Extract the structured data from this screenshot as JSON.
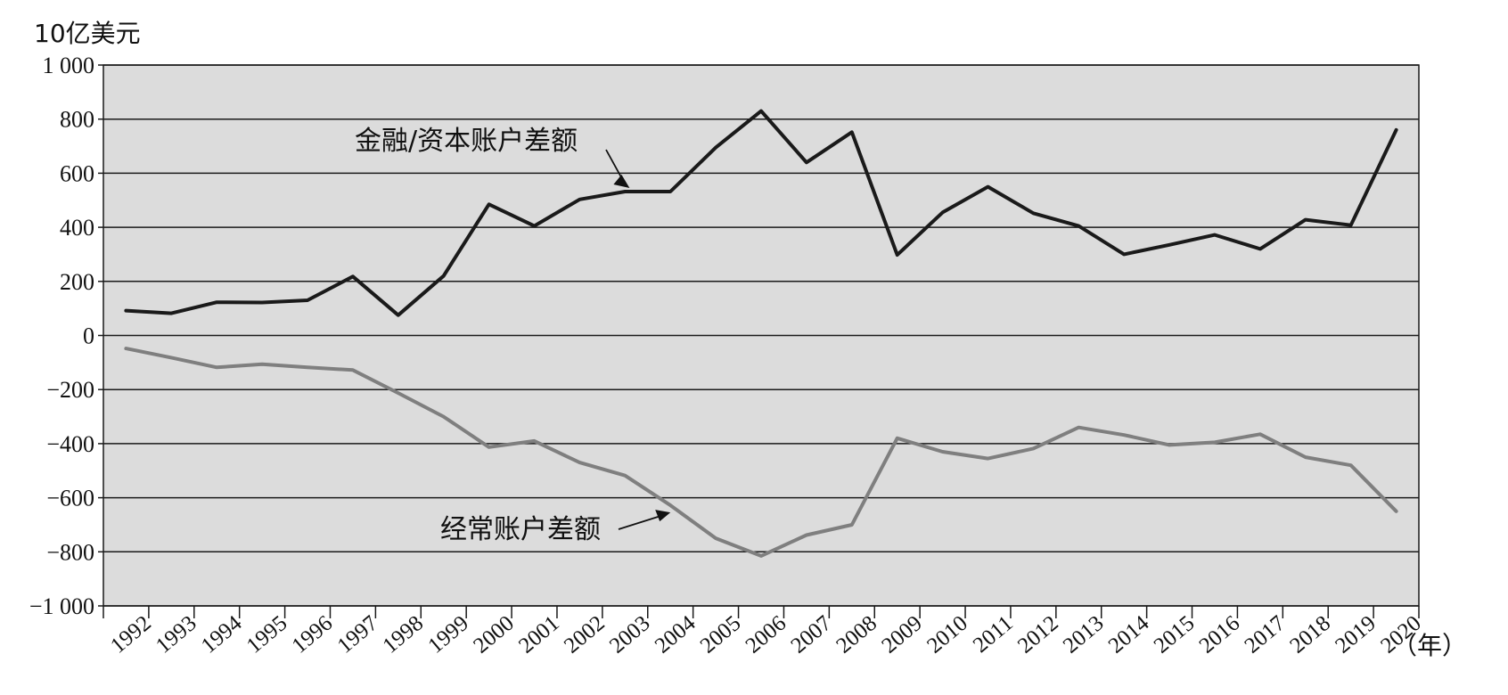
{
  "chart_data": {
    "type": "line",
    "title": "",
    "ylabel": "10亿美元",
    "xlabel": "（年）",
    "ylim": [
      -1000,
      1000
    ],
    "yticks": [
      1000,
      800,
      600,
      400,
      200,
      0,
      -200,
      -400,
      -600,
      -800,
      -1000
    ],
    "ytick_labels": [
      "1 000",
      "800",
      "600",
      "400",
      "200",
      "0",
      "−200",
      "−400",
      "−600",
      "−800",
      "−1 000"
    ],
    "grid": true,
    "background": "#dcdcdc",
    "categories": [
      "1992",
      "1993",
      "1994",
      "1995",
      "1996",
      "1997",
      "1998",
      "1999",
      "2000",
      "2001",
      "2002",
      "2003",
      "2004",
      "2005",
      "2006",
      "2007",
      "2008",
      "2009",
      "2010",
      "2011",
      "2012",
      "2013",
      "2014",
      "2015",
      "2016",
      "2017",
      "2018",
      "2019",
      "2020"
    ],
    "series": [
      {
        "name": "金融/资本账户差额",
        "color": "#1a1a1a",
        "values": [
          92,
          82,
          123,
          122,
          130,
          218,
          75,
          220,
          485,
          405,
          503,
          532,
          532,
          695,
          830,
          640,
          752,
          298,
          455,
          550,
          452,
          405,
          300,
          335,
          372,
          320,
          428,
          408,
          760
        ]
      },
      {
        "name": "经常账户差额",
        "color": "#7f7f7f",
        "values": [
          -48,
          -82,
          -118,
          -106,
          -118,
          -128,
          -213,
          -300,
          -413,
          -390,
          -470,
          -518,
          -628,
          -750,
          -815,
          -738,
          -700,
          -380,
          -430,
          -455,
          -418,
          -340,
          -368,
          -405,
          -395,
          -365,
          -450,
          -480,
          -650
        ]
      }
    ],
    "annotations": [
      {
        "text": "金融/资本账户差额",
        "series": 0
      },
      {
        "text": "经常账户差额",
        "series": 1
      }
    ]
  }
}
